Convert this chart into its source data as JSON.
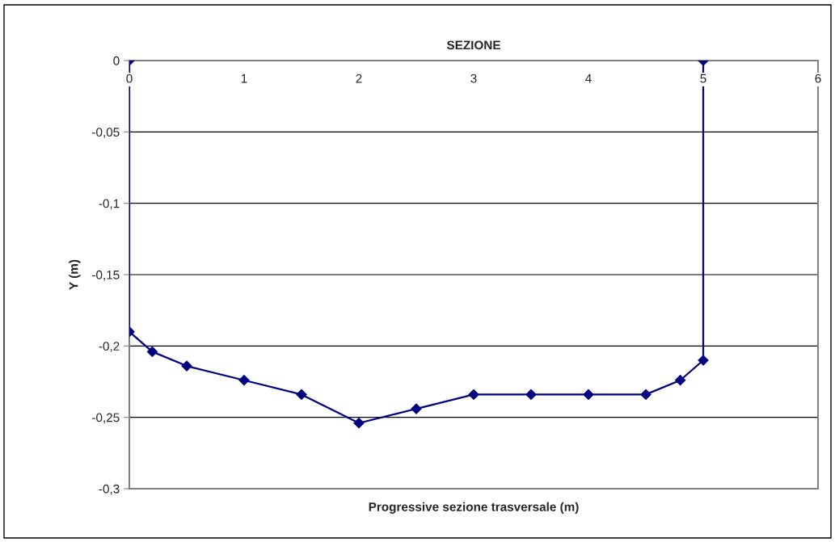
{
  "chart_data": {
    "type": "line",
    "title": "SEZIONE",
    "xlabel": "Progressive sezione trasversale (m)",
    "ylabel": "Y (m)",
    "series": [
      {
        "color": "#000080",
        "x": [
          0,
          0,
          0.2,
          0.5,
          1,
          1.5,
          2,
          2.5,
          3,
          3.5,
          4,
          4.5,
          4.8,
          5,
          5
        ],
        "values": [
          0,
          -0.19,
          -0.204,
          -0.214,
          -0.224,
          -0.234,
          -0.254,
          -0.244,
          -0.234,
          -0.234,
          -0.234,
          -0.234,
          -0.224,
          -0.21,
          0
        ]
      }
    ],
    "xlim": [
      0,
      6
    ],
    "xticks": [
      0,
      1,
      2,
      3,
      4,
      5,
      6
    ],
    "ylim": [
      -0.3,
      0
    ],
    "yticks": [
      {
        "value": -0.3,
        "label": "-0,3"
      },
      {
        "value": -0.25,
        "label": "-0,25"
      },
      {
        "value": -0.2,
        "label": "-0,2"
      },
      {
        "value": -0.15,
        "label": "-0,15"
      },
      {
        "value": -0.1,
        "label": "-0,1"
      },
      {
        "value": -0.05,
        "label": "-0,05"
      },
      {
        "value": 0,
        "label": "0"
      }
    ],
    "grid": "y",
    "marker": "diamond",
    "line_style": "solid",
    "legend": false
  }
}
